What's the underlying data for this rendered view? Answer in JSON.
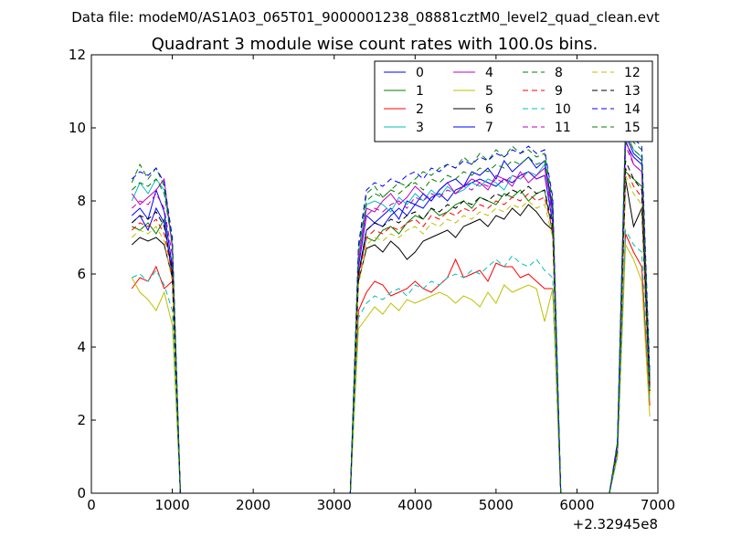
{
  "chart_data": {
    "type": "line",
    "suptitle": "Data file: modeM0/AS1A03_065T01_9000001238_08881cztM0_level2_quad_clean.evt",
    "title": "Quadrant 3 module wise count rates with 100.0s bins.",
    "xlabel": "",
    "ylabel": "",
    "x_offset_label": "+2.32945e8",
    "xlim": [
      0,
      7000
    ],
    "ylim": [
      0,
      12
    ],
    "xticks": [
      "0",
      "1000",
      "2000",
      "3000",
      "4000",
      "5000",
      "6000",
      "7000"
    ],
    "yticks": [
      "0",
      "2",
      "4",
      "6",
      "8",
      "10",
      "12"
    ],
    "grid": false,
    "legend_position": "top-right",
    "x": [
      500,
      600,
      700,
      800,
      900,
      1000,
      1100,
      1200,
      1300,
      1400,
      1500,
      1600,
      1700,
      1800,
      1900,
      2000,
      2100,
      2200,
      2300,
      2400,
      2500,
      2600,
      2700,
      2800,
      2900,
      3000,
      3100,
      3200,
      3300,
      3400,
      3500,
      3600,
      3700,
      3800,
      3900,
      4000,
      4100,
      4200,
      4300,
      4400,
      4500,
      4600,
      4700,
      4800,
      4900,
      5000,
      5100,
      5200,
      5300,
      5400,
      5500,
      5600,
      5700,
      5800,
      5900,
      6000,
      6100,
      6200,
      6300,
      6400,
      6500,
      6600,
      6700,
      6800,
      6900
    ],
    "series": [
      {
        "name": "0",
        "color": "#0000ff",
        "dashed": false,
        "values": [
          7.6,
          7.8,
          7.5,
          8.3,
          7.7,
          6.2,
          0,
          0,
          0,
          0,
          0,
          0,
          0,
          0,
          0,
          0,
          0,
          0,
          0,
          0,
          0,
          0,
          0,
          0,
          0,
          0,
          0,
          0,
          6.2,
          7.6,
          7.4,
          7.6,
          7.8,
          7.5,
          8.0,
          7.9,
          7.8,
          8.1,
          8.2,
          8.0,
          8.3,
          8.4,
          8.5,
          8.6,
          8.5,
          8.4,
          8.6,
          8.5,
          8.7,
          8.8,
          8.6,
          8.7,
          7.4,
          0,
          0,
          0,
          0,
          0,
          0,
          0,
          1.2,
          9.6,
          9.2,
          9.0,
          3.0
        ]
      },
      {
        "name": "1",
        "color": "#008000",
        "dashed": false,
        "values": [
          7.3,
          7.2,
          7.4,
          7.1,
          7.5,
          5.9,
          0,
          0,
          0,
          0,
          0,
          0,
          0,
          0,
          0,
          0,
          0,
          0,
          0,
          0,
          0,
          0,
          0,
          0,
          0,
          0,
          0,
          0,
          6.0,
          7.0,
          6.9,
          7.2,
          7.3,
          7.1,
          7.4,
          7.6,
          7.5,
          7.8,
          7.6,
          7.7,
          7.9,
          8.0,
          7.8,
          8.1,
          8.0,
          7.9,
          8.2,
          8.1,
          8.3,
          8.0,
          8.2,
          8.3,
          7.1,
          0,
          0,
          0,
          0,
          0,
          0,
          0,
          1.1,
          8.8,
          8.6,
          8.4,
          2.9
        ]
      },
      {
        "name": "2",
        "color": "#ff0000",
        "dashed": false,
        "values": [
          5.6,
          5.9,
          5.8,
          6.2,
          5.6,
          5.8,
          0,
          0,
          0,
          0,
          0,
          0,
          0,
          0,
          0,
          0,
          0,
          0,
          0,
          0,
          0,
          0,
          0,
          0,
          0,
          0,
          0,
          0,
          5.0,
          5.5,
          5.8,
          5.7,
          5.4,
          5.5,
          5.6,
          5.8,
          5.6,
          5.5,
          5.7,
          5.9,
          6.4,
          5.9,
          6.0,
          6.1,
          5.8,
          6.3,
          6.2,
          6.2,
          5.9,
          6.0,
          5.8,
          5.6,
          5.6,
          0,
          0,
          0,
          0,
          0,
          0,
          0,
          1.0,
          7.1,
          6.6,
          6.2,
          2.4
        ]
      },
      {
        "name": "3",
        "color": "#00bfbf",
        "dashed": false,
        "values": [
          8.0,
          8.5,
          8.2,
          8.6,
          8.3,
          6.8,
          0,
          0,
          0,
          0,
          0,
          0,
          0,
          0,
          0,
          0,
          0,
          0,
          0,
          0,
          0,
          0,
          0,
          0,
          0,
          0,
          0,
          0,
          6.6,
          7.9,
          8.0,
          7.9,
          7.7,
          8.1,
          7.9,
          8.2,
          8.0,
          8.3,
          8.1,
          8.4,
          8.2,
          8.3,
          8.5,
          8.4,
          8.6,
          8.5,
          8.3,
          8.7,
          8.6,
          8.8,
          8.7,
          9.0,
          7.6,
          0,
          0,
          0,
          0,
          0,
          0,
          0,
          1.3,
          9.9,
          9.4,
          9.2,
          3.1
        ]
      },
      {
        "name": "4",
        "color": "#bf00bf",
        "dashed": false,
        "values": [
          8.2,
          7.9,
          8.1,
          8.3,
          8.6,
          6.7,
          0,
          0,
          0,
          0,
          0,
          0,
          0,
          0,
          0,
          0,
          0,
          0,
          0,
          0,
          0,
          0,
          0,
          0,
          0,
          0,
          0,
          0,
          6.4,
          7.8,
          7.7,
          8.0,
          8.2,
          7.9,
          8.1,
          8.4,
          8.2,
          8.0,
          8.3,
          8.5,
          8.2,
          8.4,
          8.6,
          8.5,
          8.3,
          8.7,
          8.6,
          8.4,
          8.8,
          8.5,
          8.7,
          8.9,
          7.7,
          0,
          0,
          0,
          0,
          0,
          0,
          0,
          1.3,
          9.7,
          9.0,
          8.8,
          3.0
        ]
      },
      {
        "name": "5",
        "color": "#bfbf00",
        "dashed": false,
        "values": [
          5.9,
          5.5,
          5.3,
          5.0,
          5.5,
          4.6,
          0,
          0,
          0,
          0,
          0,
          0,
          0,
          0,
          0,
          0,
          0,
          0,
          0,
          0,
          0,
          0,
          0,
          0,
          0,
          0,
          0,
          0,
          4.5,
          4.8,
          5.1,
          4.9,
          5.2,
          5.0,
          5.3,
          5.2,
          5.3,
          5.4,
          5.5,
          5.4,
          5.2,
          5.4,
          5.3,
          5.1,
          5.5,
          5.2,
          5.7,
          5.5,
          5.6,
          5.7,
          5.6,
          4.7,
          5.6,
          0,
          0,
          0,
          0,
          0,
          0,
          0,
          1.0,
          6.8,
          6.4,
          5.8,
          2.1
        ]
      },
      {
        "name": "6",
        "color": "#000000",
        "dashed": false,
        "values": [
          6.8,
          7.0,
          6.9,
          7.0,
          6.8,
          5.9,
          0,
          0,
          0,
          0,
          0,
          0,
          0,
          0,
          0,
          0,
          0,
          0,
          0,
          0,
          0,
          0,
          0,
          0,
          0,
          0,
          0,
          0,
          5.8,
          6.7,
          6.8,
          6.6,
          6.9,
          6.7,
          6.4,
          6.6,
          6.9,
          7.0,
          7.1,
          7.2,
          7.0,
          7.3,
          7.4,
          7.5,
          7.3,
          7.6,
          7.5,
          7.8,
          7.6,
          7.9,
          7.7,
          7.4,
          7.2,
          0,
          0,
          0,
          0,
          0,
          0,
          0,
          1.1,
          8.6,
          7.3,
          7.8,
          2.7
        ]
      },
      {
        "name": "7",
        "color": "#0000ff",
        "dashed": false,
        "values": [
          7.4,
          7.6,
          7.2,
          7.8,
          7.4,
          6.0,
          0,
          0,
          0,
          0,
          0,
          0,
          0,
          0,
          0,
          0,
          0,
          0,
          0,
          0,
          0,
          0,
          0,
          0,
          0,
          0,
          0,
          0,
          6.0,
          7.2,
          7.4,
          7.3,
          7.6,
          7.8,
          7.6,
          7.9,
          8.2,
          8.0,
          8.3,
          8.5,
          8.6,
          8.4,
          8.8,
          8.7,
          8.9,
          8.6,
          9.1,
          8.8,
          9.0,
          9.2,
          8.9,
          9.1,
          7.8,
          0,
          0,
          0,
          0,
          0,
          0,
          0,
          1.2,
          9.8,
          9.3,
          9.1,
          3.1
        ]
      },
      {
        "name": "8",
        "color": "#008000",
        "dashed": true,
        "values": [
          8.5,
          9.0,
          8.6,
          8.9,
          8.4,
          6.9,
          0,
          0,
          0,
          0,
          0,
          0,
          0,
          0,
          0,
          0,
          0,
          0,
          0,
          0,
          0,
          0,
          0,
          0,
          0,
          0,
          0,
          0,
          6.7,
          8.2,
          8.4,
          8.1,
          8.3,
          8.5,
          8.4,
          8.6,
          8.8,
          8.7,
          8.9,
          9.0,
          8.9,
          9.2,
          9.0,
          9.3,
          9.1,
          9.4,
          9.2,
          9.5,
          9.3,
          9.4,
          9.2,
          9.3,
          8.0,
          0,
          0,
          0,
          0,
          0,
          0,
          0,
          1.4,
          10.2,
          9.6,
          9.4,
          3.2
        ]
      },
      {
        "name": "9",
        "color": "#ff0000",
        "dashed": true,
        "values": [
          7.2,
          7.4,
          7.3,
          7.5,
          7.1,
          6.0,
          0,
          0,
          0,
          0,
          0,
          0,
          0,
          0,
          0,
          0,
          0,
          0,
          0,
          0,
          0,
          0,
          0,
          0,
          0,
          0,
          0,
          0,
          5.9,
          7.0,
          7.2,
          7.1,
          7.3,
          7.2,
          7.4,
          7.5,
          7.3,
          7.6,
          7.5,
          7.7,
          7.6,
          7.8,
          7.7,
          7.9,
          7.8,
          8.0,
          7.9,
          8.1,
          8.0,
          8.2,
          8.0,
          8.1,
          7.2,
          0,
          0,
          0,
          0,
          0,
          0,
          0,
          1.1,
          8.9,
          8.4,
          8.1,
          2.8
        ]
      },
      {
        "name": "10",
        "color": "#00bfbf",
        "dashed": true,
        "values": [
          5.9,
          6.0,
          5.8,
          6.1,
          5.7,
          5.0,
          0,
          0,
          0,
          0,
          0,
          0,
          0,
          0,
          0,
          0,
          0,
          0,
          0,
          0,
          0,
          0,
          0,
          0,
          0,
          0,
          0,
          0,
          4.8,
          5.2,
          5.4,
          5.3,
          5.5,
          5.6,
          5.4,
          5.7,
          5.6,
          5.8,
          5.7,
          5.9,
          6.0,
          5.9,
          6.1,
          6.0,
          6.2,
          6.4,
          6.2,
          6.5,
          6.3,
          6.2,
          6.4,
          6.1,
          5.9,
          0,
          0,
          0,
          0,
          0,
          0,
          0,
          1.0,
          7.2,
          6.8,
          6.6,
          2.5
        ]
      },
      {
        "name": "11",
        "color": "#bf00bf",
        "dashed": true,
        "values": [
          7.8,
          8.0,
          7.9,
          8.2,
          7.8,
          6.5,
          0,
          0,
          0,
          0,
          0,
          0,
          0,
          0,
          0,
          0,
          0,
          0,
          0,
          0,
          0,
          0,
          0,
          0,
          0,
          0,
          0,
          0,
          6.3,
          7.6,
          7.8,
          7.7,
          7.9,
          8.0,
          7.8,
          8.1,
          8.0,
          8.2,
          8.1,
          8.3,
          8.2,
          8.4,
          8.3,
          8.5,
          8.4,
          8.6,
          8.5,
          8.7,
          8.6,
          8.8,
          8.6,
          8.7,
          7.6,
          0,
          0,
          0,
          0,
          0,
          0,
          0,
          1.2,
          9.5,
          9.0,
          8.8,
          3.0
        ]
      },
      {
        "name": "12",
        "color": "#bfbf00",
        "dashed": true,
        "values": [
          7.0,
          7.2,
          7.1,
          7.3,
          6.9,
          5.8,
          0,
          0,
          0,
          0,
          0,
          0,
          0,
          0,
          0,
          0,
          0,
          0,
          0,
          0,
          0,
          0,
          0,
          0,
          0,
          0,
          0,
          0,
          5.7,
          6.8,
          7.0,
          6.9,
          7.1,
          7.0,
          7.2,
          7.3,
          7.1,
          7.4,
          7.3,
          7.5,
          7.4,
          7.6,
          7.5,
          7.7,
          7.6,
          7.8,
          7.7,
          7.9,
          7.8,
          8.0,
          7.8,
          7.9,
          7.0,
          0,
          0,
          0,
          0,
          0,
          0,
          0,
          1.1,
          8.7,
          8.2,
          7.9,
          2.7
        ]
      },
      {
        "name": "13",
        "color": "#000000",
        "dashed": true,
        "values": [
          7.4,
          7.6,
          7.5,
          7.7,
          7.3,
          6.1,
          0,
          0,
          0,
          0,
          0,
          0,
          0,
          0,
          0,
          0,
          0,
          0,
          0,
          0,
          0,
          0,
          0,
          0,
          0,
          0,
          0,
          0,
          6.0,
          7.2,
          7.4,
          7.3,
          7.5,
          7.4,
          7.6,
          7.7,
          7.5,
          7.8,
          7.7,
          7.9,
          7.8,
          8.0,
          7.9,
          8.1,
          8.0,
          8.2,
          8.1,
          8.3,
          8.2,
          8.4,
          8.2,
          8.3,
          7.3,
          0,
          0,
          0,
          0,
          0,
          0,
          0,
          1.2,
          9.1,
          8.6,
          8.3,
          2.8
        ]
      },
      {
        "name": "14",
        "color": "#0000ff",
        "dashed": true,
        "values": [
          8.6,
          8.8,
          8.7,
          8.9,
          8.5,
          7.0,
          0,
          0,
          0,
          0,
          0,
          0,
          0,
          0,
          0,
          0,
          0,
          0,
          0,
          0,
          0,
          0,
          0,
          0,
          0,
          0,
          0,
          0,
          6.8,
          8.3,
          8.5,
          8.4,
          8.6,
          8.5,
          8.7,
          8.8,
          8.6,
          8.9,
          8.8,
          9.0,
          8.9,
          9.1,
          9.0,
          9.2,
          9.1,
          9.3,
          9.2,
          9.4,
          9.3,
          9.5,
          9.3,
          9.4,
          8.1,
          0,
          0,
          0,
          0,
          0,
          0,
          0,
          1.4,
          10.1,
          9.7,
          9.5,
          3.3
        ]
      },
      {
        "name": "15",
        "color": "#008000",
        "dashed": true,
        "values": [
          8.3,
          8.5,
          8.4,
          8.6,
          8.2,
          6.8,
          0,
          0,
          0,
          0,
          0,
          0,
          0,
          0,
          0,
          0,
          0,
          0,
          0,
          0,
          0,
          0,
          0,
          0,
          0,
          0,
          0,
          0,
          6.6,
          8.0,
          8.2,
          8.1,
          8.3,
          8.2,
          8.4,
          8.5,
          8.3,
          8.6,
          8.5,
          8.7,
          8.6,
          8.8,
          8.7,
          8.9,
          8.8,
          9.0,
          8.9,
          9.1,
          9.0,
          9.2,
          9.0,
          9.1,
          7.9,
          0,
          0,
          0,
          0,
          0,
          0,
          0,
          1.3,
          9.9,
          9.4,
          9.2,
          3.1
        ]
      }
    ]
  }
}
